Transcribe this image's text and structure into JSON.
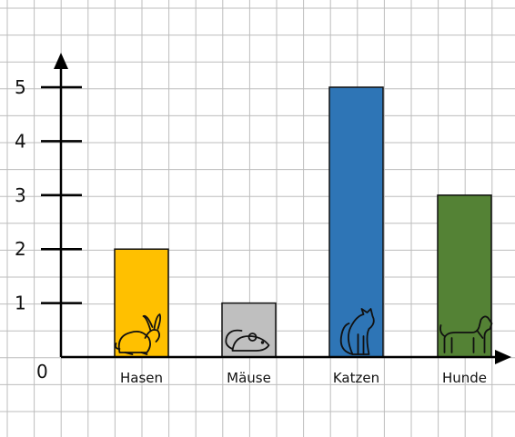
{
  "chart_data": {
    "type": "bar",
    "title": "",
    "xlabel": "",
    "ylabel": "",
    "origin_label": "0",
    "categories": [
      "Hasen",
      "Mäuse",
      "Katzen",
      "Hunde"
    ],
    "values": [
      2,
      1,
      5,
      3
    ],
    "colors": [
      "#ffc000",
      "#bfbfbf",
      "#2e75b6",
      "#548235"
    ],
    "icons": [
      "rabbit-icon",
      "mouse-icon",
      "cat-icon",
      "dog-icon"
    ],
    "yticks": [
      1,
      2,
      3,
      4,
      5
    ],
    "ylim": [
      0,
      5
    ],
    "grid": true,
    "legend": "none"
  }
}
